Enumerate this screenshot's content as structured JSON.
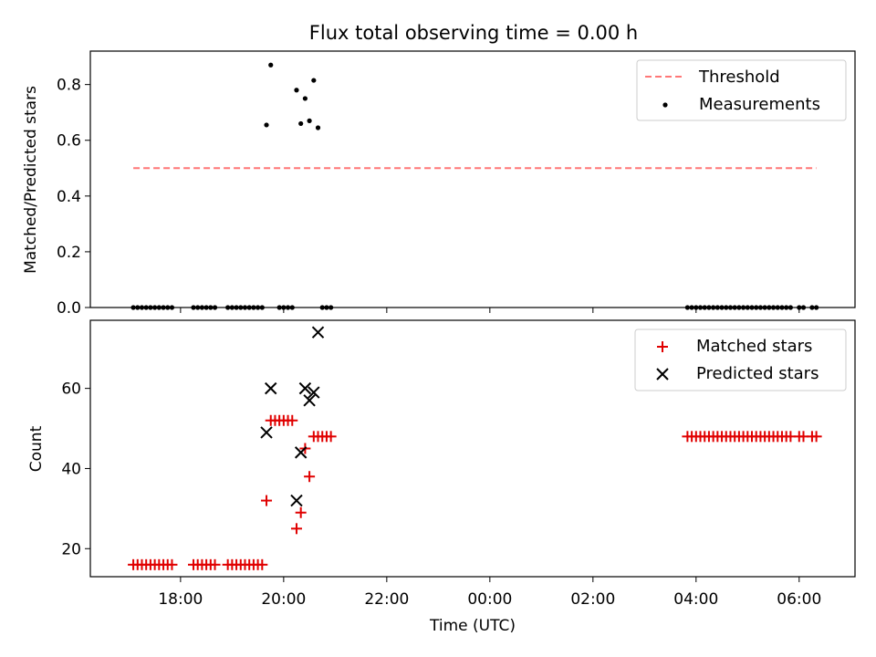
{
  "colors": {
    "threshold": "#ff7777",
    "measurements": "#000000",
    "matched": "#e00000",
    "predicted": "#000000"
  },
  "chart_data": [
    {
      "type": "scatter",
      "title": "Flux total observing time = 0.00 h",
      "xlabel": "",
      "ylabel": "Matched/Predicted stars",
      "x_unit": "hours_since_midnight_of_first_day",
      "xlim": [
        "16:15",
        "07:05 (+1 day)"
      ],
      "ylim": [
        0.0,
        0.92
      ],
      "yticks": [
        "0.0",
        "0.2",
        "0.4",
        "0.6",
        "0.8"
      ],
      "legend": {
        "placement": "top-right",
        "entries": [
          "Threshold",
          "Measurements"
        ]
      },
      "threshold": {
        "name": "Threshold",
        "value": 0.5,
        "x_start": "17:05",
        "x_end": "06:20 (+1 day)"
      },
      "series": [
        {
          "name": "Measurements",
          "points": [
            [
              "17:05",
              0
            ],
            [
              "17:10",
              0
            ],
            [
              "17:15",
              0
            ],
            [
              "17:20",
              0
            ],
            [
              "17:25",
              0
            ],
            [
              "17:30",
              0
            ],
            [
              "17:35",
              0
            ],
            [
              "17:40",
              0
            ],
            [
              "17:45",
              0
            ],
            [
              "17:50",
              0
            ],
            [
              "18:15",
              0
            ],
            [
              "18:20",
              0
            ],
            [
              "18:25",
              0
            ],
            [
              "18:30",
              0
            ],
            [
              "18:35",
              0
            ],
            [
              "18:40",
              0
            ],
            [
              "18:55",
              0
            ],
            [
              "19:00",
              0
            ],
            [
              "19:05",
              0
            ],
            [
              "19:10",
              0
            ],
            [
              "19:15",
              0
            ],
            [
              "19:20",
              0
            ],
            [
              "19:25",
              0
            ],
            [
              "19:30",
              0
            ],
            [
              "19:35",
              0
            ],
            [
              "19:55",
              0
            ],
            [
              "20:00",
              0
            ],
            [
              "20:05",
              0
            ],
            [
              "20:10",
              0
            ],
            [
              "20:45",
              0
            ],
            [
              "20:50",
              0
            ],
            [
              "20:55",
              0
            ],
            [
              "19:40",
              0.655
            ],
            [
              "19:45",
              0.87
            ],
            [
              "20:15",
              0.78
            ],
            [
              "20:20",
              0.66
            ],
            [
              "20:25",
              0.75
            ],
            [
              "20:30",
              0.67
            ],
            [
              "20:35",
              0.815
            ],
            [
              "20:40",
              0.645
            ],
            [
              "03:50 (+1 day)",
              0
            ],
            [
              "03:55 (+1 day)",
              0
            ],
            [
              "04:00 (+1 day)",
              0
            ],
            [
              "04:05 (+1 day)",
              0
            ],
            [
              "04:10 (+1 day)",
              0
            ],
            [
              "04:15 (+1 day)",
              0
            ],
            [
              "04:20 (+1 day)",
              0
            ],
            [
              "04:25 (+1 day)",
              0
            ],
            [
              "04:30 (+1 day)",
              0
            ],
            [
              "04:35 (+1 day)",
              0
            ],
            [
              "04:40 (+1 day)",
              0
            ],
            [
              "04:45 (+1 day)",
              0
            ],
            [
              "04:50 (+1 day)",
              0
            ],
            [
              "04:55 (+1 day)",
              0
            ],
            [
              "05:00 (+1 day)",
              0
            ],
            [
              "05:05 (+1 day)",
              0
            ],
            [
              "05:10 (+1 day)",
              0
            ],
            [
              "05:15 (+1 day)",
              0
            ],
            [
              "05:20 (+1 day)",
              0
            ],
            [
              "05:25 (+1 day)",
              0
            ],
            [
              "05:30 (+1 day)",
              0
            ],
            [
              "05:35 (+1 day)",
              0
            ],
            [
              "05:40 (+1 day)",
              0
            ],
            [
              "05:45 (+1 day)",
              0
            ],
            [
              "05:50 (+1 day)",
              0
            ],
            [
              "06:00 (+1 day)",
              0
            ],
            [
              "06:05 (+1 day)",
              0
            ],
            [
              "06:15 (+1 day)",
              0
            ],
            [
              "06:20 (+1 day)",
              0
            ]
          ]
        }
      ]
    },
    {
      "type": "scatter",
      "title": "",
      "xlabel": "Time (UTC)",
      "ylabel": "Count",
      "x_unit": "hours_since_midnight_of_first_day",
      "xlim": [
        "16:15",
        "07:05 (+1 day)"
      ],
      "ylim": [
        13,
        77
      ],
      "xticks": [
        "18:00",
        "20:00",
        "22:00",
        "00:00",
        "02:00",
        "04:00",
        "06:00"
      ],
      "yticks": [
        "20",
        "40",
        "60"
      ],
      "legend": {
        "placement": "top-right",
        "entries": [
          "Matched stars",
          "Predicted stars"
        ]
      },
      "series": [
        {
          "name": "Matched stars",
          "points": [
            [
              "17:05",
              16
            ],
            [
              "17:10",
              16
            ],
            [
              "17:15",
              16
            ],
            [
              "17:20",
              16
            ],
            [
              "17:25",
              16
            ],
            [
              "17:30",
              16
            ],
            [
              "17:35",
              16
            ],
            [
              "17:40",
              16
            ],
            [
              "17:45",
              16
            ],
            [
              "17:50",
              16
            ],
            [
              "18:15",
              16
            ],
            [
              "18:20",
              16
            ],
            [
              "18:25",
              16
            ],
            [
              "18:30",
              16
            ],
            [
              "18:35",
              16
            ],
            [
              "18:40",
              16
            ],
            [
              "18:55",
              16
            ],
            [
              "19:00",
              16
            ],
            [
              "19:05",
              16
            ],
            [
              "19:10",
              16
            ],
            [
              "19:15",
              16
            ],
            [
              "19:20",
              16
            ],
            [
              "19:25",
              16
            ],
            [
              "19:30",
              16
            ],
            [
              "19:35",
              16
            ],
            [
              "19:40",
              32
            ],
            [
              "19:45",
              52
            ],
            [
              "19:50",
              52
            ],
            [
              "19:55",
              52
            ],
            [
              "20:00",
              52
            ],
            [
              "20:05",
              52
            ],
            [
              "20:10",
              52
            ],
            [
              "20:15",
              25
            ],
            [
              "20:20",
              29
            ],
            [
              "20:25",
              45
            ],
            [
              "20:30",
              38
            ],
            [
              "20:35",
              48
            ],
            [
              "20:40",
              48
            ],
            [
              "20:45",
              48
            ],
            [
              "20:50",
              48
            ],
            [
              "20:55",
              48
            ],
            [
              "03:50 (+1 day)",
              48
            ],
            [
              "03:55 (+1 day)",
              48
            ],
            [
              "04:00 (+1 day)",
              48
            ],
            [
              "04:05 (+1 day)",
              48
            ],
            [
              "04:10 (+1 day)",
              48
            ],
            [
              "04:15 (+1 day)",
              48
            ],
            [
              "04:20 (+1 day)",
              48
            ],
            [
              "04:25 (+1 day)",
              48
            ],
            [
              "04:30 (+1 day)",
              48
            ],
            [
              "04:35 (+1 day)",
              48
            ],
            [
              "04:40 (+1 day)",
              48
            ],
            [
              "04:45 (+1 day)",
              48
            ],
            [
              "04:50 (+1 day)",
              48
            ],
            [
              "04:55 (+1 day)",
              48
            ],
            [
              "05:00 (+1 day)",
              48
            ],
            [
              "05:05 (+1 day)",
              48
            ],
            [
              "05:10 (+1 day)",
              48
            ],
            [
              "05:15 (+1 day)",
              48
            ],
            [
              "05:20 (+1 day)",
              48
            ],
            [
              "05:25 (+1 day)",
              48
            ],
            [
              "05:30 (+1 day)",
              48
            ],
            [
              "05:35 (+1 day)",
              48
            ],
            [
              "05:40 (+1 day)",
              48
            ],
            [
              "05:45 (+1 day)",
              48
            ],
            [
              "05:50 (+1 day)",
              48
            ],
            [
              "06:00 (+1 day)",
              48
            ],
            [
              "06:05 (+1 day)",
              48
            ],
            [
              "06:15 (+1 day)",
              48
            ],
            [
              "06:20 (+1 day)",
              48
            ]
          ]
        },
        {
          "name": "Predicted stars",
          "points": [
            [
              "19:40",
              49
            ],
            [
              "19:45",
              60
            ],
            [
              "20:15",
              32
            ],
            [
              "20:20",
              44
            ],
            [
              "20:25",
              60
            ],
            [
              "20:30",
              57
            ],
            [
              "20:35",
              59
            ],
            [
              "20:40",
              74
            ]
          ]
        }
      ]
    }
  ]
}
